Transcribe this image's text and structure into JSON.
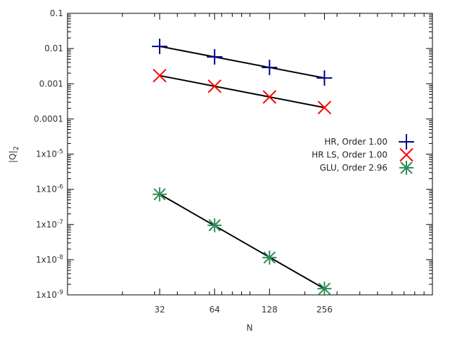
{
  "chart_data": {
    "type": "scatter",
    "title": "",
    "xlabel": "N",
    "ylabel": "|Q|2",
    "x_scale": "log",
    "y_scale": "log",
    "xlim": [
      10,
      1000
    ],
    "ylim": [
      1e-09,
      0.1
    ],
    "grid": false,
    "legend_position": "right",
    "x_ticks": [
      32,
      64,
      128,
      256
    ],
    "x_tick_labels": [
      "32",
      "64",
      "128",
      "256"
    ],
    "y_ticks": [
      0.1,
      0.01,
      0.001,
      0.0001,
      1e-05,
      1e-06,
      1e-07,
      1e-08,
      1e-09
    ],
    "y_tick_labels": [
      "0.1",
      "0.01",
      "0.001",
      "0.0001",
      "1x10-5",
      "1x10-6",
      "1x10-7",
      "1x10-8",
      "1x10-9"
    ],
    "series": [
      {
        "name": "HR, Order 1.00",
        "marker": "plus",
        "color": "#00008b",
        "x": [
          32,
          64,
          128,
          256
        ],
        "y": [
          0.0115,
          0.0058,
          0.0029,
          0.00145
        ]
      },
      {
        "name": "HR LS, Order 1.00",
        "marker": "cross",
        "color": "#ff0000",
        "x": [
          32,
          64,
          128,
          256
        ],
        "y": [
          0.0017,
          0.00085,
          0.00042,
          0.00021
        ]
      },
      {
        "name": "GLU, Order 2.96",
        "marker": "star",
        "color": "#2e8b57",
        "x": [
          32,
          64,
          128,
          256
        ],
        "y": [
          7.2e-07,
          9.5e-08,
          1.15e-08,
          1.5e-09
        ]
      }
    ],
    "fit_line_color": "#000000"
  }
}
